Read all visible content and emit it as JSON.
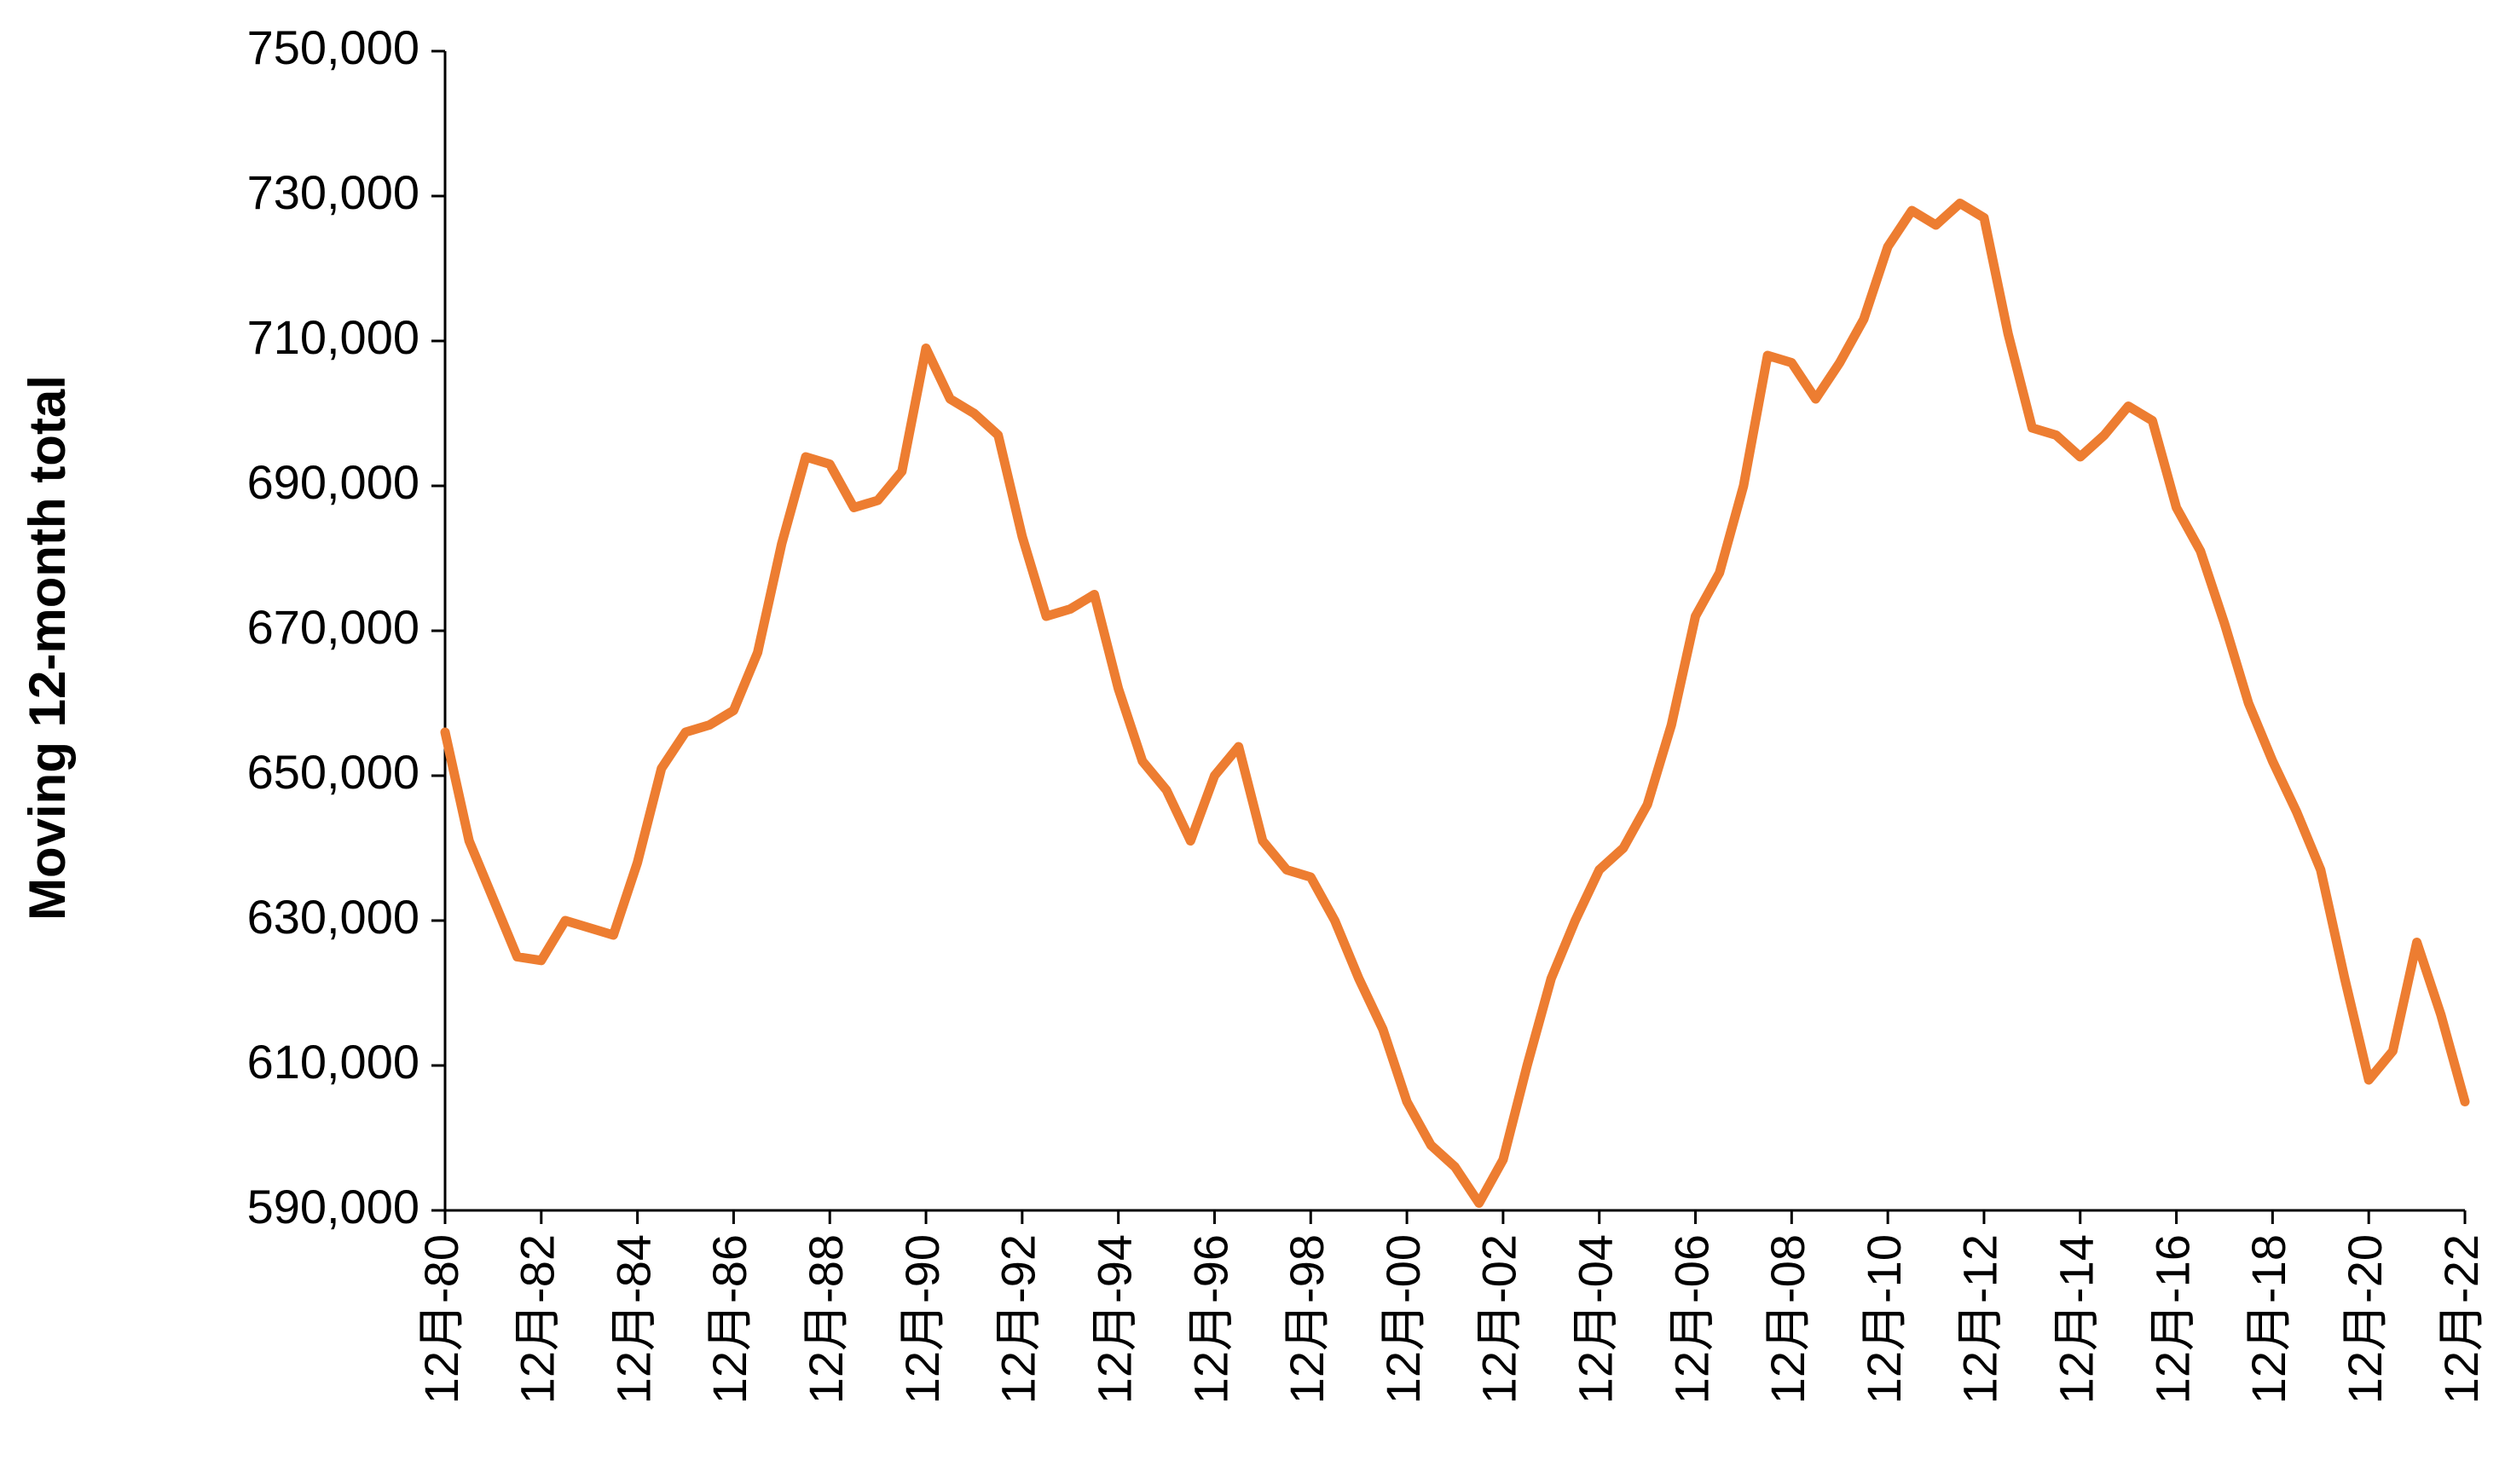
{
  "chart_data": {
    "type": "line",
    "y_label": "Moving 12-month total",
    "color": "#ed7d31",
    "categories": [
      "12月-80",
      null,
      null,
      null,
      "12月-82",
      null,
      null,
      null,
      "12月-84",
      null,
      null,
      null,
      "12月-86",
      null,
      null,
      null,
      "12月-88",
      null,
      null,
      null,
      "12月-90",
      null,
      null,
      null,
      "12月-92",
      null,
      null,
      null,
      "12月-94",
      null,
      null,
      null,
      "12月-96",
      null,
      null,
      null,
      "12月-98",
      null,
      null,
      null,
      "12月-00",
      null,
      null,
      null,
      "12月-02",
      null,
      null,
      null,
      "12月-04",
      null,
      null,
      null,
      "12月-06",
      null,
      null,
      null,
      "12月-08",
      null,
      null,
      null,
      "12月-10",
      null,
      null,
      null,
      "12月-12",
      null,
      null,
      null,
      "12月-14",
      null,
      null,
      null,
      "12月-16",
      null,
      null,
      null,
      "12月-18",
      null,
      null,
      null,
      "12月-20",
      null,
      null,
      null,
      "12月-22"
    ],
    "values": [
      656000,
      641000,
      633000,
      625000,
      624500,
      630000,
      629000,
      628000,
      638000,
      651000,
      656000,
      657000,
      659000,
      667000,
      682000,
      694000,
      693000,
      687000,
      688000,
      692000,
      709000,
      702000,
      700000,
      697000,
      683000,
      672000,
      673000,
      675000,
      662000,
      652000,
      648000,
      641000,
      650000,
      654000,
      641000,
      637000,
      636000,
      630000,
      622000,
      615000,
      605000,
      599000,
      596000,
      591000,
      597000,
      610000,
      622000,
      630000,
      637000,
      640000,
      646000,
      657000,
      672000,
      678000,
      690000,
      708000,
      707000,
      702000,
      707000,
      713000,
      723000,
      728000,
      726000,
      729000,
      727000,
      711000,
      698000,
      697000,
      694000,
      697000,
      701000,
      699000,
      687000,
      681000,
      671000,
      660000,
      652000,
      645000,
      637000,
      622000,
      608000,
      612000,
      627000,
      617000,
      605000
    ],
    "ylim": [
      590000,
      750000
    ],
    "yticks": [
      {
        "value": 590000,
        "label": "590,000"
      },
      {
        "value": 610000,
        "label": "610,000"
      },
      {
        "value": 630000,
        "label": "630,000"
      },
      {
        "value": 650000,
        "label": "650,000"
      },
      {
        "value": 670000,
        "label": "670,000"
      },
      {
        "value": 690000,
        "label": "690,000"
      },
      {
        "value": 710000,
        "label": "710,000"
      },
      {
        "value": 730000,
        "label": "730,000"
      },
      {
        "value": 750000,
        "label": "750,000"
      }
    ],
    "grid": false
  }
}
